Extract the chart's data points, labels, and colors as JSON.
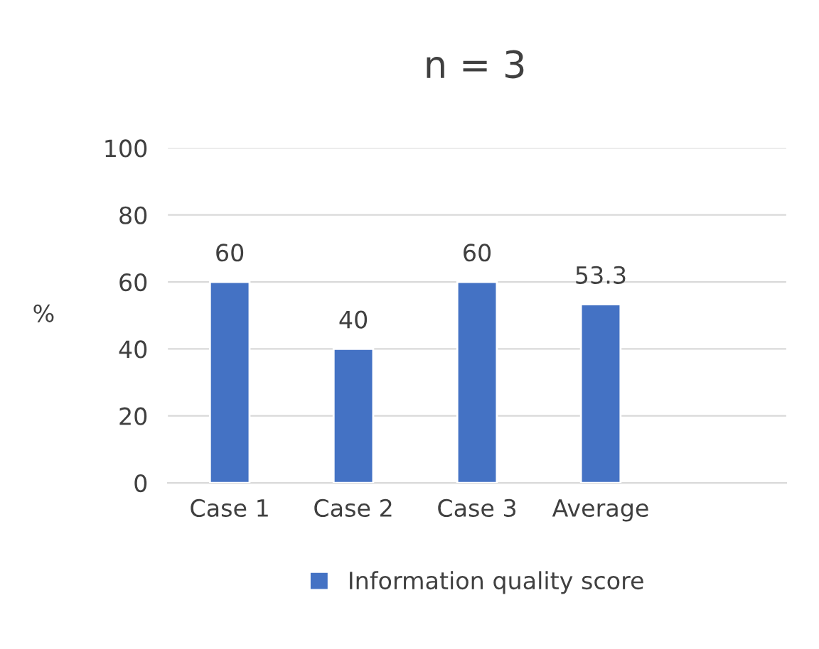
{
  "chart_data": {
    "type": "bar",
    "title": "n = 3",
    "ylabel": "%",
    "categories": [
      "Case 1",
      "Case 2",
      "Case 3",
      "Average",
      null
    ],
    "series": [
      {
        "name": "Information quality score",
        "color": "#4472c4",
        "values": [
          60,
          40,
          60,
          53.3,
          null
        ]
      }
    ],
    "ylim": [
      0,
      100
    ],
    "yticks": [
      0,
      20,
      40,
      60,
      80,
      100
    ],
    "grid": "y",
    "legend": "bottom",
    "data_labels": true
  }
}
